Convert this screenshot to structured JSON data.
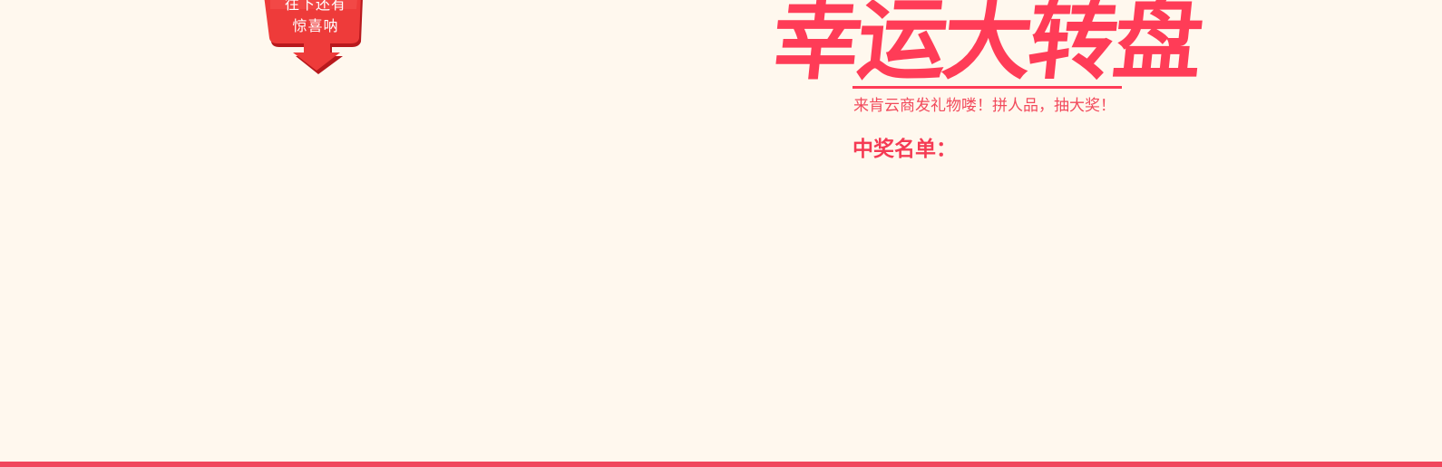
{
  "badge": {
    "line1": "往下还有",
    "line2": "惊喜呐"
  },
  "title": "幸运大转盘",
  "subtitle": "来肯云商发礼物喽！拼人品，抽大奖！",
  "winners_heading": "中奖名单：",
  "colors": {
    "background": "#fff8ee",
    "accent": "#ff3c57",
    "badge_red": "#ee3b3a",
    "bottom_bar": "#f0475d"
  }
}
